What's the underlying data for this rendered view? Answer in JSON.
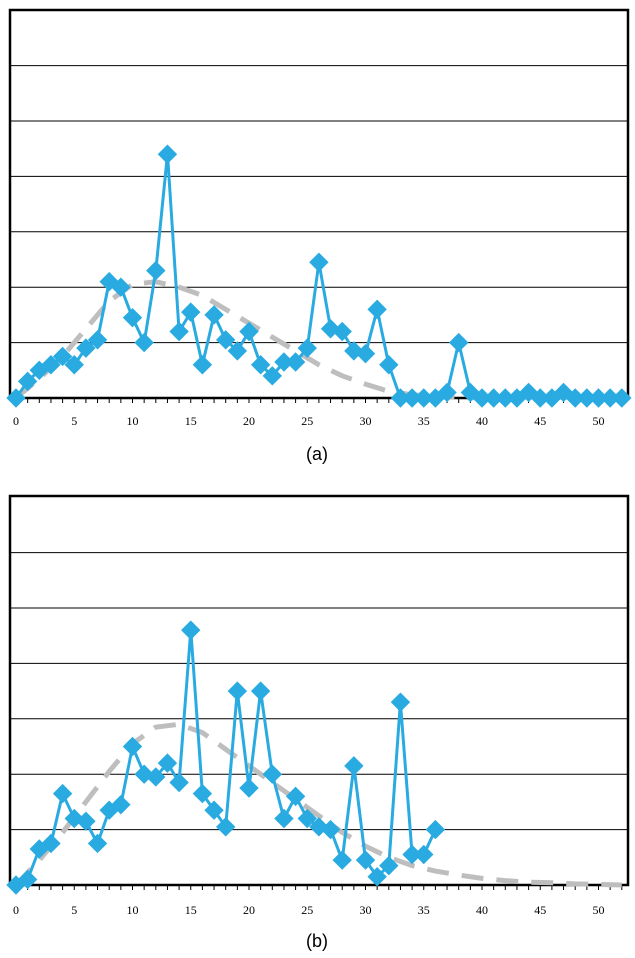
{
  "chart_data": [
    {
      "type": "line",
      "caption": "(a)",
      "xlim": [
        0,
        52
      ],
      "ylim": [
        0,
        7
      ],
      "grid": true,
      "x_ticks": [
        0,
        5,
        10,
        15,
        20,
        25,
        30,
        35,
        40,
        45,
        50
      ],
      "y_tick_labels_shown": false,
      "colors": {
        "observed": "#29abe2",
        "fit": "#bebebe",
        "grid": "#000000"
      },
      "series": [
        {
          "style": "solid-diamond",
          "x": [
            0,
            1,
            2,
            3,
            4,
            5,
            6,
            7,
            8,
            9,
            10,
            11,
            12,
            13,
            14,
            15,
            16,
            17,
            18,
            19,
            20,
            21,
            22,
            23,
            24,
            25,
            26,
            27,
            28,
            29,
            30,
            31,
            32,
            33,
            34,
            35,
            36,
            37,
            38,
            39,
            40,
            41,
            42,
            43,
            44,
            45,
            46,
            47,
            48,
            49,
            50,
            51,
            52
          ],
          "y": [
            0,
            0.3,
            0.5,
            0.6,
            0.75,
            0.6,
            0.9,
            1.05,
            2.1,
            2.0,
            1.45,
            1.0,
            2.3,
            4.4,
            1.2,
            1.55,
            0.6,
            1.5,
            1.05,
            0.85,
            1.2,
            0.6,
            0.4,
            0.65,
            0.65,
            0.9,
            2.45,
            1.25,
            1.2,
            0.85,
            0.8,
            1.6,
            0.6,
            0,
            0,
            0,
            0,
            0.1,
            1.0,
            0.1,
            0,
            0,
            0,
            0,
            0.1,
            0,
            0,
            0.1,
            0,
            0,
            0,
            0,
            0
          ]
        },
        {
          "style": "dashed-fit",
          "x": [
            0,
            2,
            4,
            6,
            8,
            10,
            12,
            14,
            16,
            18,
            20,
            22,
            24,
            26,
            28,
            30,
            32,
            34,
            36,
            38,
            40
          ],
          "y": [
            0,
            0.35,
            0.75,
            1.25,
            1.75,
            2.05,
            2.1,
            2.0,
            1.85,
            1.6,
            1.35,
            1.1,
            0.85,
            0.6,
            0.4,
            0.25,
            0.12,
            0.06,
            0.03,
            0.01,
            0
          ]
        }
      ]
    },
    {
      "type": "line",
      "caption": "(b)",
      "xlim": [
        0,
        52
      ],
      "ylim": [
        0,
        7
      ],
      "grid": true,
      "x_ticks": [
        0,
        5,
        10,
        15,
        20,
        25,
        30,
        35,
        40,
        45,
        50
      ],
      "y_tick_labels_shown": false,
      "colors": {
        "observed": "#29abe2",
        "fit": "#bebebe",
        "grid": "#000000"
      },
      "series": [
        {
          "style": "solid-diamond",
          "x": [
            0,
            1,
            2,
            3,
            4,
            5,
            6,
            7,
            8,
            9,
            10,
            11,
            12,
            13,
            14,
            15,
            16,
            17,
            18,
            19,
            20,
            21,
            22,
            23,
            24,
            25,
            26,
            27,
            28,
            29,
            30,
            31,
            32,
            33,
            34,
            35,
            36
          ],
          "y": [
            0,
            0.1,
            0.65,
            0.75,
            1.65,
            1.2,
            1.15,
            0.75,
            1.35,
            1.45,
            2.5,
            2.0,
            1.95,
            2.2,
            1.85,
            4.6,
            1.65,
            1.35,
            1.05,
            3.5,
            1.75,
            3.5,
            2.0,
            1.2,
            1.6,
            1.2,
            1.05,
            1.0,
            0.45,
            2.15,
            0.45,
            0.15,
            0.35,
            3.3,
            0.55,
            0.55,
            1.0
          ]
        },
        {
          "style": "dashed-fit",
          "x": [
            0,
            2,
            4,
            6,
            8,
            10,
            12,
            14,
            16,
            18,
            20,
            22,
            24,
            26,
            28,
            30,
            32,
            34,
            36,
            38,
            40,
            42,
            44,
            46,
            48,
            50,
            52
          ],
          "y": [
            0,
            0.45,
            0.95,
            1.5,
            2.05,
            2.55,
            2.85,
            2.9,
            2.75,
            2.45,
            2.15,
            1.85,
            1.55,
            1.25,
            0.95,
            0.7,
            0.5,
            0.35,
            0.25,
            0.18,
            0.12,
            0.08,
            0.05,
            0.04,
            0.02,
            0.01,
            0
          ]
        }
      ]
    }
  ]
}
